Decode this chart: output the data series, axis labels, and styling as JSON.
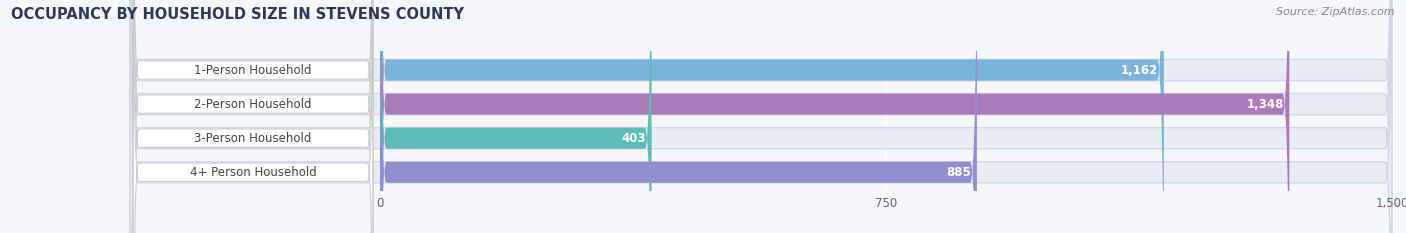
{
  "title": "OCCUPANCY BY HOUSEHOLD SIZE IN STEVENS COUNTY",
  "source": "Source: ZipAtlas.com",
  "categories": [
    "1-Person Household",
    "2-Person Household",
    "3-Person Household",
    "4+ Person Household"
  ],
  "values": [
    1162,
    1348,
    403,
    885
  ],
  "labels": [
    "1,162",
    "1,348",
    "403",
    "885"
  ],
  "bar_colors": [
    "#7ab3d9",
    "#aa7bb8",
    "#5bbcb8",
    "#9090d0"
  ],
  "xlim": [
    0,
    1500
  ],
  "xticks": [
    0,
    750,
    1500
  ],
  "xtick_labels": [
    "0",
    "750",
    "1,500"
  ],
  "title_fontsize": 10.5,
  "source_fontsize": 8,
  "label_fontsize": 8.5,
  "cat_fontsize": 8.5,
  "tick_fontsize": 8.5,
  "bar_height": 0.62,
  "background_color": "#f5f7fa",
  "bar_bg_color": "#e8edf4",
  "bar_bg_border": "#d0d8e8",
  "label_pill_color": "#ffffff",
  "label_text_color": "#444444",
  "title_color": "#2a3a5a",
  "source_color": "#888888",
  "value_label_color": "#ffffff"
}
